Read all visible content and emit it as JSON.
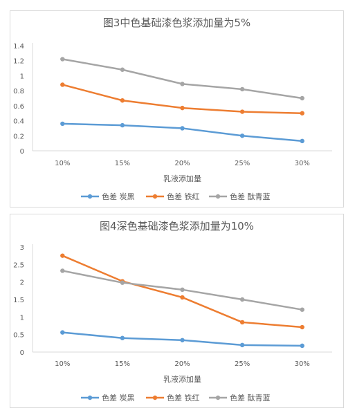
{
  "chart_data": [
    {
      "type": "line",
      "title": "图3中色基础漆色浆添加量为5%",
      "xlabel": "乳液添加量",
      "ylabel": "",
      "categories": [
        "10%",
        "15%",
        "20%",
        "25%",
        "30%"
      ],
      "ylim": [
        0,
        1.4
      ],
      "yticks": [
        "0",
        "0.2",
        "0.4",
        "0.6",
        "0.8",
        "1",
        "1.2",
        "1.4"
      ],
      "grid": false,
      "legend_position": "bottom",
      "series": [
        {
          "name": "色差 炭黑",
          "color": "#5b9bd5",
          "values": [
            0.36,
            0.34,
            0.3,
            0.2,
            0.13
          ]
        },
        {
          "name": "色差 铁红",
          "color": "#ed7d31",
          "values": [
            0.88,
            0.67,
            0.57,
            0.52,
            0.5
          ]
        },
        {
          "name": "色差 酞青蓝",
          "color": "#a5a5a5",
          "values": [
            1.22,
            1.08,
            0.89,
            0.82,
            0.7
          ]
        }
      ]
    },
    {
      "type": "line",
      "title": "图4深色基础漆色浆添加量为10%",
      "xlabel": "乳液添加量",
      "ylabel": "",
      "categories": [
        "10%",
        "15%",
        "20%",
        "25%",
        "30%"
      ],
      "ylim": [
        0,
        3
      ],
      "yticks": [
        "0",
        "0.5",
        "1",
        "1.5",
        "2",
        "2.5",
        "3"
      ],
      "grid": false,
      "legend_position": "bottom",
      "series": [
        {
          "name": "色差 炭黑",
          "color": "#5b9bd5",
          "values": [
            0.56,
            0.4,
            0.34,
            0.2,
            0.18
          ]
        },
        {
          "name": "色差 铁红",
          "color": "#ed7d31",
          "values": [
            2.75,
            2.02,
            1.56,
            0.85,
            0.71
          ]
        },
        {
          "name": "色差 酞青蓝",
          "color": "#a5a5a5",
          "values": [
            2.32,
            1.98,
            1.78,
            1.5,
            1.21
          ]
        }
      ]
    }
  ]
}
